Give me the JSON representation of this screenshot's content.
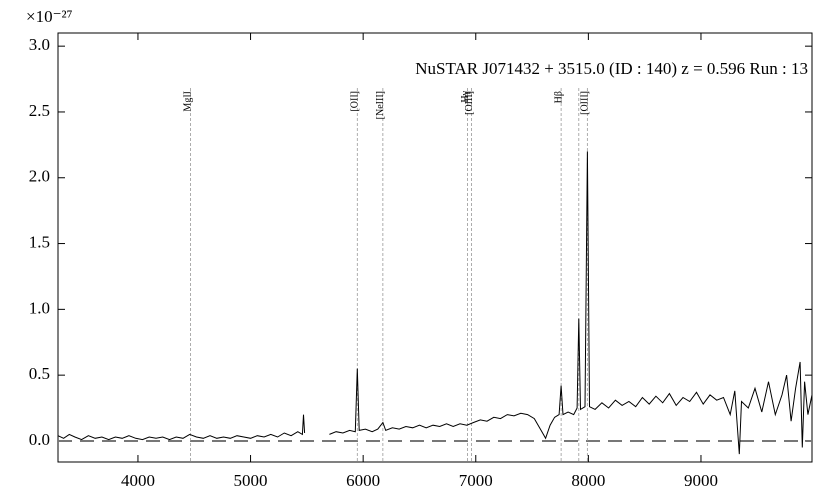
{
  "chart_data": {
    "type": "line",
    "annotation": "NuSTAR J071432 + 3515.0 (ID : 140)   z = 0.596   Run : 13",
    "y_offset_label": "×10⁻²⁷",
    "color": "#000000",
    "x": [
      3290,
      3340,
      3390,
      3440,
      3500,
      3560,
      3620,
      3680,
      3740,
      3800,
      3860,
      3920,
      3980,
      4040,
      4100,
      4160,
      4220,
      4280,
      4340,
      4400,
      4460,
      4520,
      4580,
      4640,
      4700,
      4760,
      4820,
      4880,
      4940,
      5000,
      5060,
      5120,
      5180,
      5240,
      5300,
      5360,
      5420,
      5460,
      5470,
      5480,
      null,
      5700,
      5760,
      5820,
      5880,
      5930,
      5948,
      5965,
      6020,
      6080,
      6130,
      6175,
      6200,
      6260,
      6320,
      6380,
      6440,
      6500,
      6560,
      6620,
      6680,
      6740,
      6800,
      6860,
      6920,
      6980,
      7040,
      7100,
      7160,
      7220,
      7280,
      7340,
      7400,
      7460,
      7520,
      7580,
      7620,
      7660,
      7700,
      7740,
      7758,
      7775,
      7820,
      7870,
      7900,
      7915,
      7930,
      7970,
      7991,
      8010,
      8060,
      8120,
      8180,
      8240,
      8300,
      8360,
      8420,
      8480,
      8540,
      8600,
      8660,
      8720,
      8780,
      8840,
      8900,
      8960,
      9020,
      9080,
      9140,
      9200,
      9260,
      9300,
      9340,
      9360,
      9420,
      9480,
      9540,
      9600,
      9660,
      9720,
      9760,
      9800,
      9840,
      9880,
      9900,
      9920,
      9950,
      9986
    ],
    "values": [
      0.04,
      0.02,
      0.05,
      0.03,
      0.01,
      0.04,
      0.02,
      0.03,
      0.01,
      0.03,
      0.02,
      0.04,
      0.02,
      0.01,
      0.03,
      0.02,
      0.03,
      0.01,
      0.03,
      0.02,
      0.05,
      0.03,
      0.02,
      0.04,
      0.02,
      0.03,
      0.02,
      0.04,
      0.03,
      0.02,
      0.04,
      0.03,
      0.05,
      0.03,
      0.06,
      0.04,
      0.07,
      0.05,
      0.2,
      0.06,
      null,
      0.05,
      0.07,
      0.06,
      0.08,
      0.07,
      0.55,
      0.08,
      0.09,
      0.07,
      0.09,
      0.14,
      0.08,
      0.1,
      0.09,
      0.11,
      0.1,
      0.12,
      0.1,
      0.12,
      0.11,
      0.13,
      0.11,
      0.13,
      0.12,
      0.14,
      0.16,
      0.15,
      0.18,
      0.17,
      0.2,
      0.19,
      0.21,
      0.2,
      0.17,
      0.08,
      0.02,
      0.12,
      0.18,
      0.2,
      0.42,
      0.2,
      0.22,
      0.2,
      0.25,
      0.93,
      0.24,
      0.26,
      2.2,
      0.26,
      0.24,
      0.29,
      0.25,
      0.31,
      0.27,
      0.3,
      0.26,
      0.33,
      0.28,
      0.34,
      0.29,
      0.36,
      0.27,
      0.33,
      0.3,
      0.37,
      0.28,
      0.35,
      0.31,
      0.33,
      0.2,
      0.38,
      -0.1,
      0.3,
      0.25,
      0.4,
      0.22,
      0.45,
      0.2,
      0.35,
      0.5,
      0.15,
      0.4,
      0.6,
      -0.05,
      0.45,
      0.2,
      0.35
    ],
    "zero_line": 0,
    "lines": [
      {
        "name": "MgII",
        "x": 4466
      },
      {
        "name": "[OII]",
        "x": 5948
      },
      {
        "name": "[NeIII]",
        "x": 6175
      },
      {
        "name": "Hγ",
        "x": 6927
      },
      {
        "name": "[OIII]",
        "x": 6963
      },
      {
        "name": "Hβ",
        "x": 7758
      },
      {
        "name": null,
        "x": 7915
      },
      {
        "name": "[OIII]",
        "x": 7991
      }
    ],
    "xlim": [
      3290,
      9986
    ],
    "ylim": [
      -0.16,
      3.1
    ],
    "xticks": [
      4000,
      5000,
      6000,
      7000,
      8000,
      9000
    ],
    "yticks": [
      {
        "value": 0,
        "label": "0.0"
      },
      0.5,
      {
        "value": 1,
        "label": "1.0"
      },
      1.5,
      {
        "value": 2,
        "label": "2.0"
      },
      2.5,
      {
        "value": 3,
        "label": "3.0"
      }
    ]
  }
}
